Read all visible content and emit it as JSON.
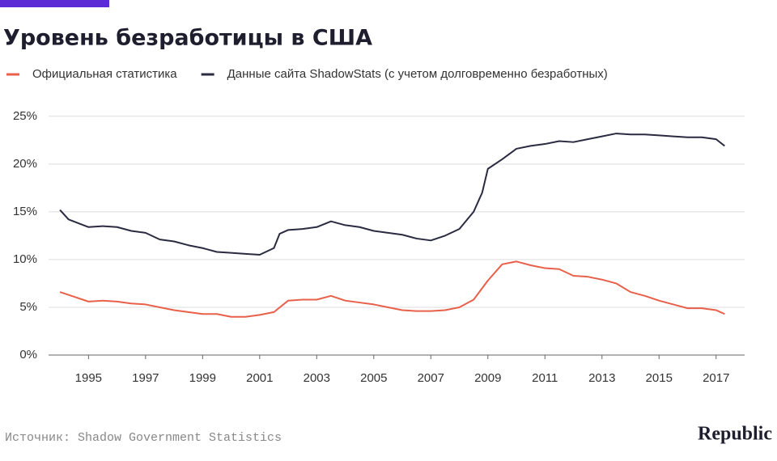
{
  "chart_data": {
    "type": "line",
    "title": "Уровень безработицы в США",
    "source": "Источник: Shadow Government Statistics",
    "brand": "Republic",
    "xlim": [
      1993.6,
      2018
    ],
    "xticks": [
      1995,
      1997,
      1999,
      2001,
      2003,
      2005,
      2007,
      2009,
      2011,
      2013,
      2015,
      2017
    ],
    "ylim": [
      0,
      26
    ],
    "yticks": [
      {
        "value": 0,
        "label": "0%"
      },
      {
        "value": 5,
        "label": "5%"
      },
      {
        "value": 10,
        "label": "10%"
      },
      {
        "value": 15,
        "label": "15%"
      },
      {
        "value": 20,
        "label": "20%"
      },
      {
        "value": 25,
        "label": "25%"
      }
    ],
    "grid": true,
    "series": [
      {
        "name": "Официальная статистика",
        "color": "#e8604a",
        "x": [
          1994.0,
          1994.5,
          1995.0,
          1995.5,
          1996.0,
          1996.5,
          1997.0,
          1997.5,
          1998.0,
          1998.5,
          1999.0,
          1999.5,
          2000.0,
          2000.5,
          2001.0,
          2001.5,
          2002.0,
          2002.5,
          2003.0,
          2003.5,
          2004.0,
          2004.5,
          2005.0,
          2005.5,
          2006.0,
          2006.5,
          2007.0,
          2007.5,
          2008.0,
          2008.5,
          2009.0,
          2009.5,
          2010.0,
          2010.5,
          2011.0,
          2011.5,
          2012.0,
          2012.5,
          2013.0,
          2013.5,
          2014.0,
          2014.5,
          2015.0,
          2015.5,
          2016.0,
          2016.5,
          2017.0,
          2017.3
        ],
        "values": [
          6.6,
          6.1,
          5.6,
          5.7,
          5.6,
          5.4,
          5.3,
          5.0,
          4.7,
          4.5,
          4.3,
          4.3,
          4.0,
          4.0,
          4.2,
          4.5,
          5.7,
          5.8,
          5.8,
          6.2,
          5.7,
          5.5,
          5.3,
          5.0,
          4.7,
          4.6,
          4.6,
          4.7,
          5.0,
          5.8,
          7.8,
          9.5,
          9.8,
          9.4,
          9.1,
          9.0,
          8.3,
          8.2,
          7.9,
          7.5,
          6.6,
          6.2,
          5.7,
          5.3,
          4.9,
          4.9,
          4.7,
          4.3
        ]
      },
      {
        "name": "Данные сайта ShadowStats (с учетом долговременно безработных)",
        "color": "#2a2a40",
        "x": [
          1994.0,
          1994.3,
          1995.0,
          1995.5,
          1996.0,
          1996.5,
          1997.0,
          1997.5,
          1998.0,
          1998.5,
          1999.0,
          1999.5,
          2000.0,
          2000.5,
          2001.0,
          2001.5,
          2001.7,
          2002.0,
          2002.5,
          2003.0,
          2003.5,
          2004.0,
          2004.5,
          2005.0,
          2005.5,
          2006.0,
          2006.5,
          2007.0,
          2007.5,
          2008.0,
          2008.5,
          2008.8,
          2009.0,
          2009.5,
          2010.0,
          2010.5,
          2011.0,
          2011.5,
          2012.0,
          2012.5,
          2013.0,
          2013.5,
          2014.0,
          2014.5,
          2015.0,
          2015.5,
          2016.0,
          2016.5,
          2017.0,
          2017.3
        ],
        "values": [
          15.2,
          14.2,
          13.4,
          13.5,
          13.4,
          13.0,
          12.8,
          12.1,
          11.9,
          11.5,
          11.2,
          10.8,
          10.7,
          10.6,
          10.5,
          11.2,
          12.7,
          13.1,
          13.2,
          13.4,
          14.0,
          13.6,
          13.4,
          13.0,
          12.8,
          12.6,
          12.2,
          12.0,
          12.5,
          13.2,
          15.0,
          17.0,
          19.5,
          20.5,
          21.6,
          21.9,
          22.1,
          22.4,
          22.3,
          22.6,
          22.9,
          23.2,
          23.1,
          23.1,
          23.0,
          22.9,
          22.8,
          22.8,
          22.6,
          21.9
        ]
      }
    ]
  }
}
